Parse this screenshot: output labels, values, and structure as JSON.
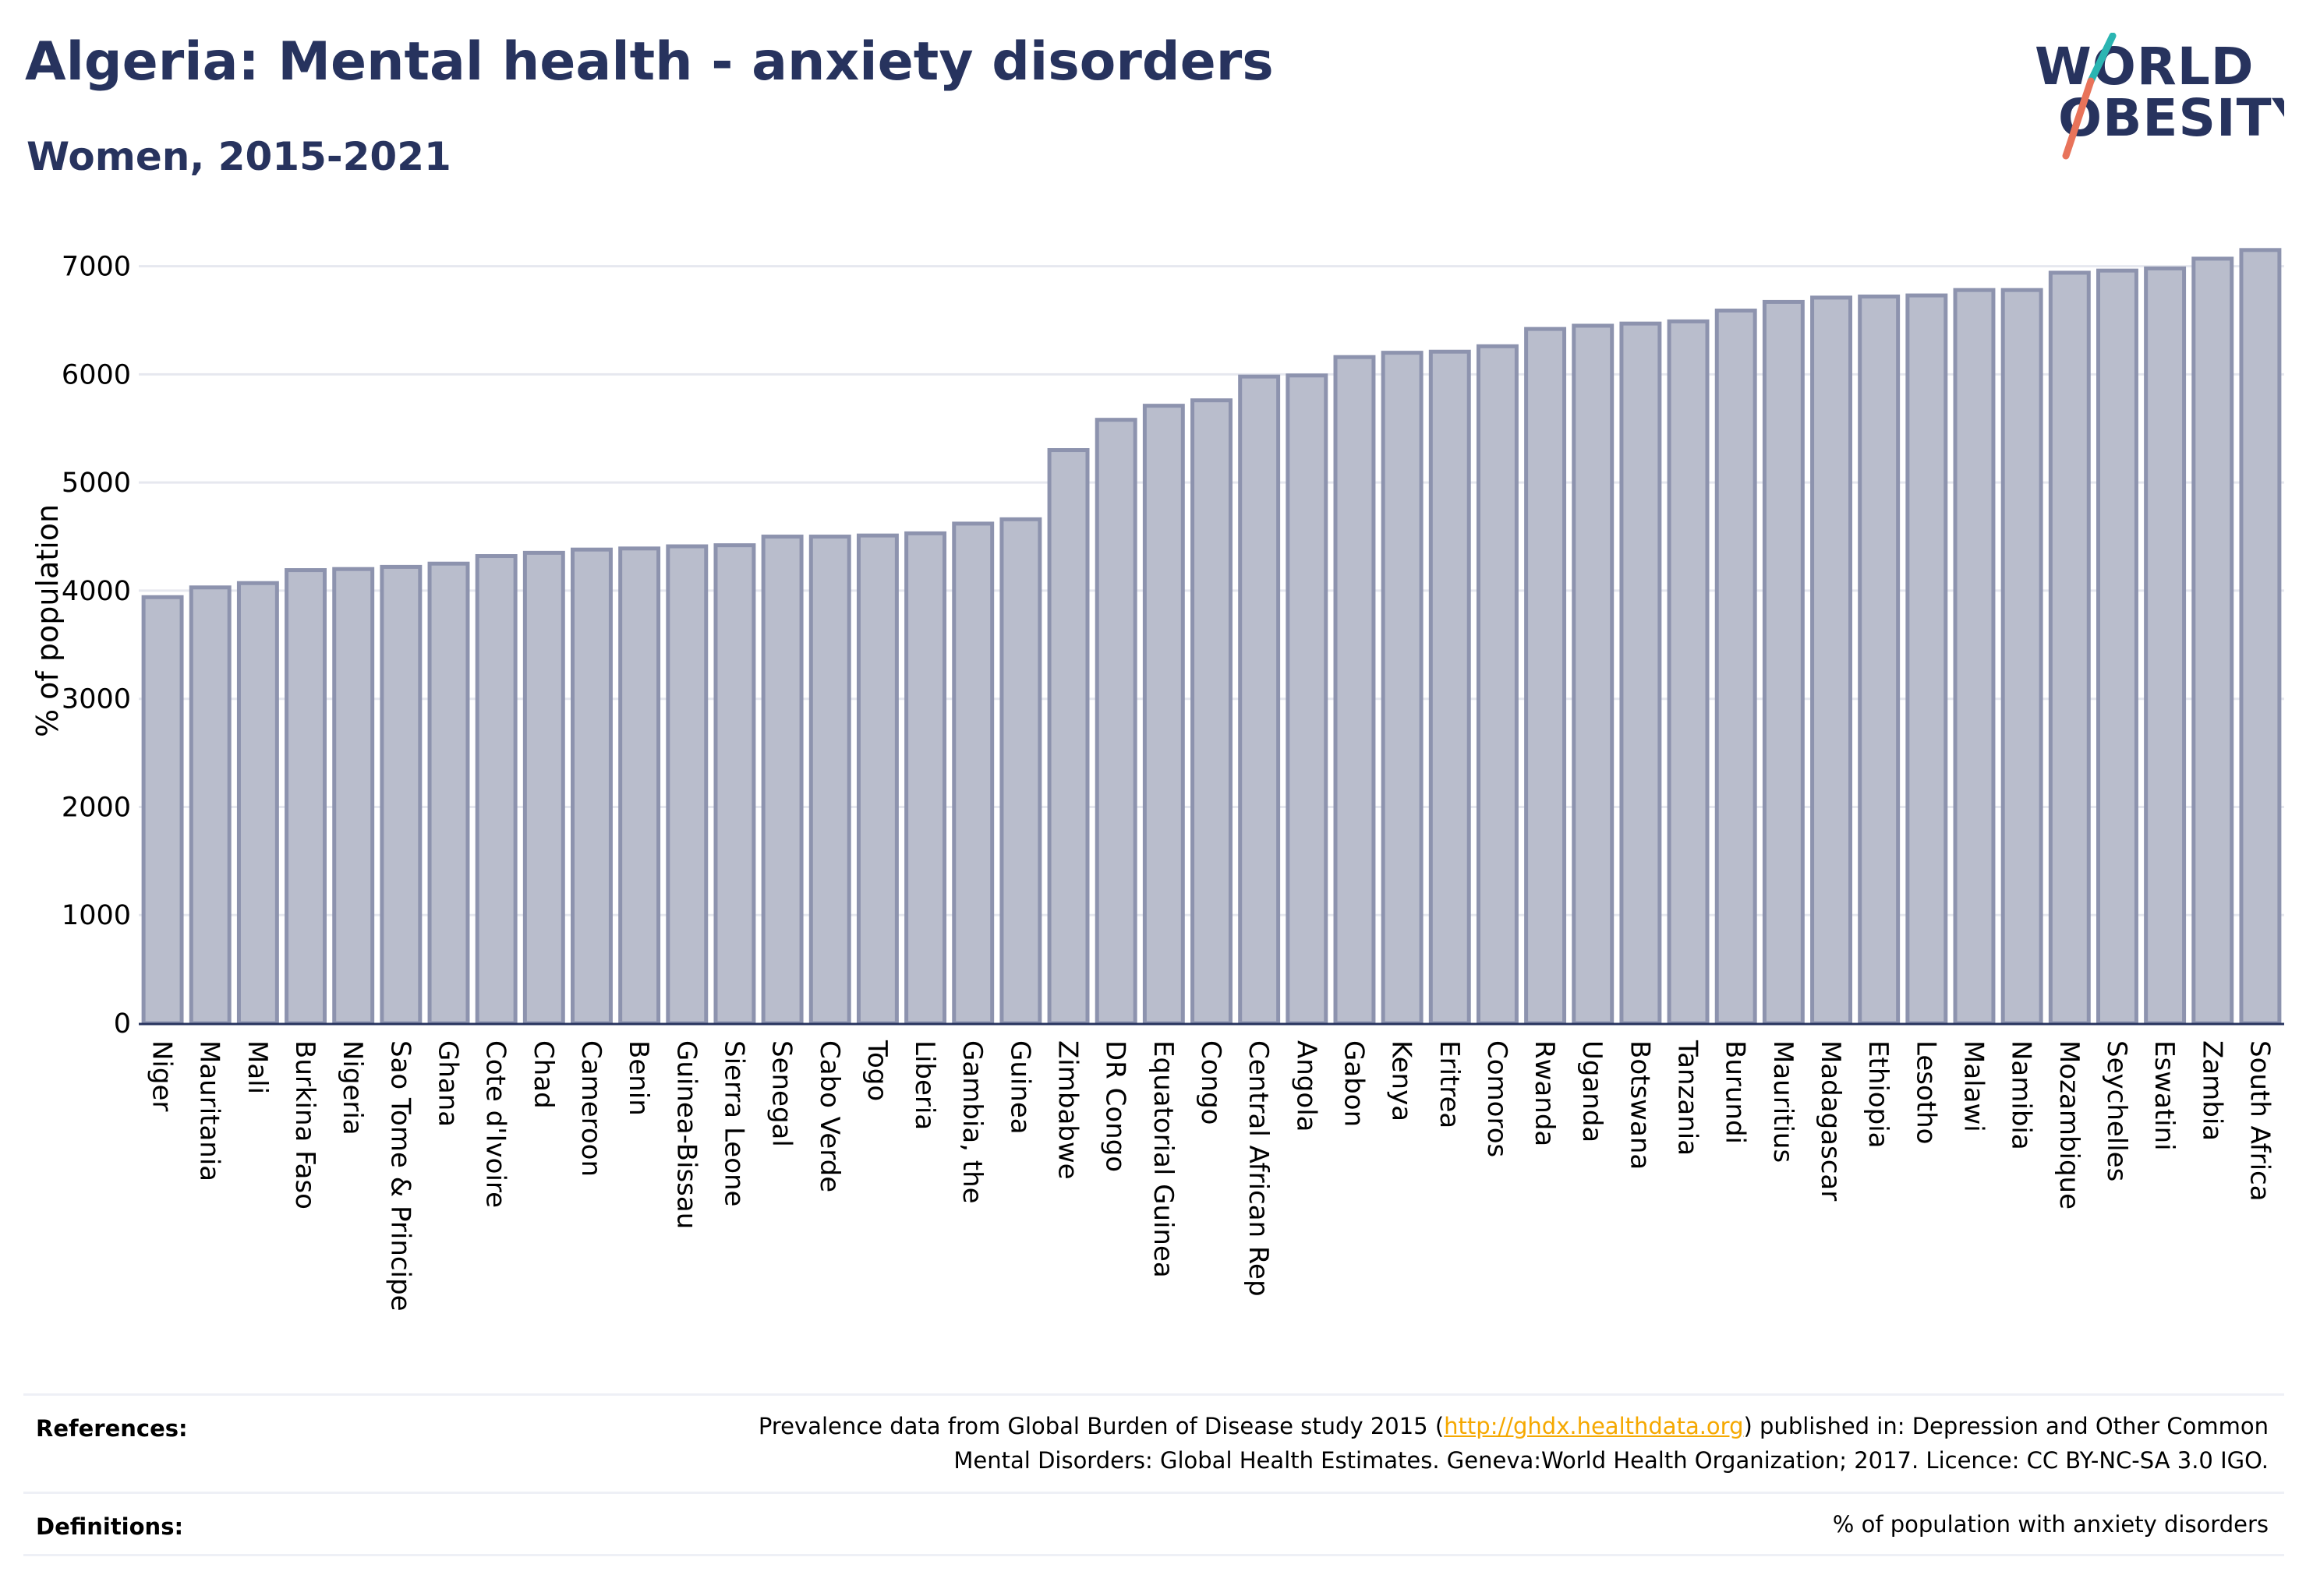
{
  "header": {
    "title": "Algeria: Mental health - anxiety disorders",
    "subtitle": "Women, 2015-2021"
  },
  "logo": {
    "line1": "WORLD",
    "line2": "OBESITY",
    "colors": {
      "text": "#27335e",
      "slash_top": "#2bb5b2",
      "slash_bottom": "#e8735a"
    }
  },
  "colors": {
    "bar_fill": "#b9bdcc",
    "bar_stroke": "#8d93ae",
    "axis": "#27335e",
    "grid": "#e6e8ef",
    "title": "#27335e",
    "link": "#f5a800"
  },
  "chart_data": {
    "type": "bar",
    "ylabel": "% of population",
    "xlabel": "",
    "ylim": [
      0,
      7300
    ],
    "yticks": [
      0,
      1000,
      2000,
      3000,
      4000,
      5000,
      6000,
      7000
    ],
    "grid": true,
    "categories": [
      "Niger",
      "Mauritania",
      "Mali",
      "Burkina Faso",
      "Nigeria",
      "Sao Tome & Principe",
      "Ghana",
      "Cote d'Ivoire",
      "Chad",
      "Cameroon",
      "Benin",
      "Guinea-Bissau",
      "Sierra Leone",
      "Senegal",
      "Cabo Verde",
      "Togo",
      "Liberia",
      "Gambia, the",
      "Guinea",
      "Zimbabwe",
      "DR Congo",
      "Equatorial Guinea",
      "Congo",
      "Central African Rep",
      "Angola",
      "Gabon",
      "Kenya",
      "Eritrea",
      "Comoros",
      "Rwanda",
      "Uganda",
      "Botswana",
      "Tanzania",
      "Burundi",
      "Mauritius",
      "Madagascar",
      "Ethiopia",
      "Lesotho",
      "Malawi",
      "Namibia",
      "Mozambique",
      "Seychelles",
      "Eswatini",
      "Zambia",
      "South Africa"
    ],
    "values": [
      3940,
      4030,
      4070,
      4190,
      4200,
      4220,
      4250,
      4320,
      4350,
      4380,
      4390,
      4410,
      4420,
      4500,
      4500,
      4510,
      4530,
      4620,
      4660,
      5300,
      5580,
      5710,
      5760,
      5980,
      5990,
      6160,
      6200,
      6210,
      6260,
      6420,
      6450,
      6470,
      6490,
      6590,
      6670,
      6710,
      6720,
      6730,
      6780,
      6780,
      6940,
      6960,
      6980,
      7070,
      7150
    ]
  },
  "footer": {
    "references_label": "References:",
    "references_pre": "Prevalence data from Global Burden of Disease study 2015 (",
    "references_link": "http://ghdx.healthdata.org",
    "references_mid": ") published in: Depression and Other Common",
    "references_line2": "Mental Disorders: Global Health Estimates. Geneva:World Health Organization; 2017. Licence: CC BY-NC-SA 3.0 IGO.",
    "definitions_label": "Definitions:",
    "definitions_text": "% of population with anxiety disorders"
  }
}
